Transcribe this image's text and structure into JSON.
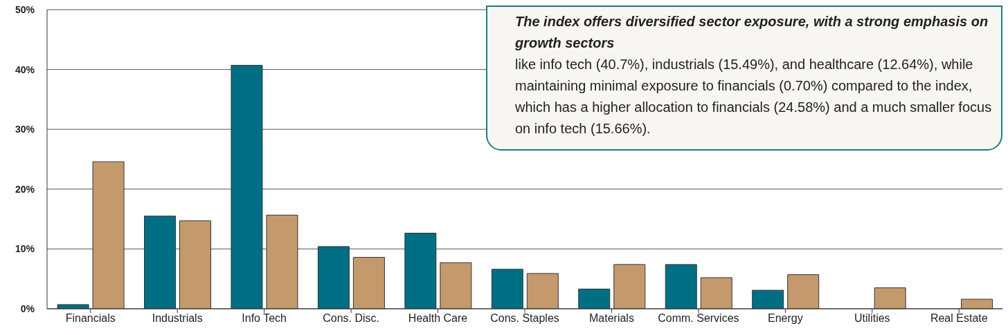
{
  "chart_data": {
    "type": "bar",
    "categories": [
      "Financials",
      "Industrials",
      "Info Tech",
      "Cons. Disc.",
      "Health Care",
      "Cons. Staples",
      "Materials",
      "Comm. Services",
      "Energy",
      "Utilities",
      "Real Estate"
    ],
    "series": [
      {
        "color": "#006f84",
        "values": [
          0.7,
          15.49,
          40.7,
          10.4,
          12.64,
          6.6,
          3.3,
          7.4,
          3.1,
          0,
          0
        ]
      },
      {
        "color": "#c49a6c",
        "values": [
          24.58,
          14.7,
          15.66,
          8.6,
          7.7,
          5.9,
          7.4,
          5.2,
          5.7,
          3.5,
          1.6
        ]
      }
    ],
    "ylim": [
      0,
      50
    ],
    "yticks": [
      {
        "value": 0,
        "label": "0%"
      },
      {
        "value": 10,
        "label": "10%"
      },
      {
        "value": 20,
        "label": "20%"
      },
      {
        "value": 30,
        "label": "30%"
      },
      {
        "value": 40,
        "label": "40%"
      },
      {
        "value": 50,
        "label": "50%"
      }
    ],
    "grid": "y",
    "legend": false,
    "annotations": [
      "The index offers diversified sector exposure, with a strong emphasis on growth sectors",
      "like info tech (40.7%), industrials (15.49%), and healthcare (12.64%), while maintaining minimal exposure to financials (0.70%) compared to the index, which has a higher allocation to financials (24.58%) and a much smaller focus on info tech (15.66%)."
    ]
  }
}
